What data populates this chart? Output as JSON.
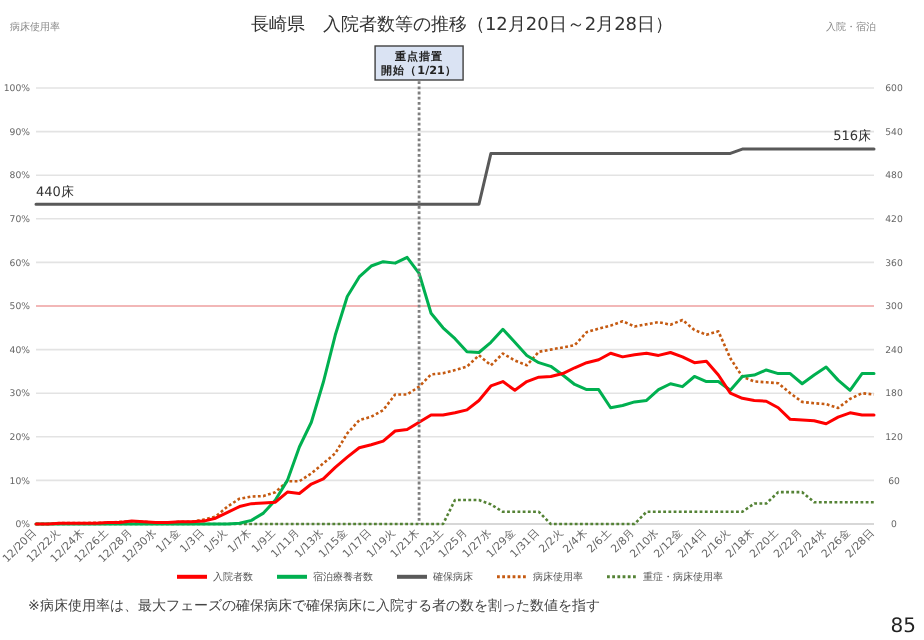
{
  "chart_data": {
    "type": "line",
    "title": "長崎県　入院者数等の推移（12月20日～2月28日）",
    "categories": [
      "12/20日",
      null,
      "12/22火",
      null,
      "12/24木",
      null,
      "12/26土",
      null,
      "12/28月",
      null,
      "12/30水",
      null,
      "1/1金",
      null,
      "1/3日",
      null,
      "1/5火",
      null,
      "1/7木",
      null,
      "1/9土",
      null,
      "1/11月",
      null,
      "1/13水",
      null,
      "1/15金",
      null,
      "1/17日",
      null,
      "1/19火",
      null,
      "1/21木",
      null,
      "1/23土",
      null,
      "1/25月",
      null,
      "1/27水",
      null,
      "1/29金",
      null,
      "1/31日",
      null,
      "2/2火",
      null,
      "2/4木",
      null,
      "2/6土",
      null,
      "2/8月",
      null,
      "2/10水",
      null,
      "2/12金",
      null,
      "2/14日",
      null,
      "2/16火",
      null,
      "2/18木",
      null,
      "2/20土",
      null,
      "2/22月",
      null,
      "2/24水",
      null,
      "2/26金",
      null,
      "2/28日"
    ],
    "series": [
      {
        "name": "入院者数",
        "color": "#ff0000",
        "axis": "y2",
        "line_style": "solid",
        "values": [
          0,
          0,
          1,
          1,
          1,
          1,
          2,
          2,
          4,
          3,
          2,
          2,
          3,
          3,
          4,
          8,
          16,
          24,
          28,
          29,
          30,
          44,
          42,
          55,
          62,
          78,
          92,
          105,
          109,
          114,
          128,
          130,
          140,
          150,
          150,
          153,
          157,
          170,
          190,
          196,
          184,
          196,
          202,
          203,
          207,
          215,
          222,
          226,
          235,
          230,
          233,
          235,
          232,
          236,
          230,
          222,
          224,
          205,
          180,
          173,
          170,
          169,
          160,
          144,
          143,
          142,
          138,
          147,
          153,
          150,
          150
        ]
      },
      {
        "name": "宿泊療養者数",
        "color": "#00b050",
        "axis": "y2",
        "line_style": "solid",
        "values": [
          0,
          0,
          0,
          0,
          0,
          0,
          0,
          0,
          0,
          0,
          0,
          0,
          0,
          0,
          0,
          0,
          0,
          1,
          5,
          15,
          33,
          60,
          106,
          140,
          195,
          260,
          313,
          340,
          355,
          361,
          359,
          367,
          345,
          290,
          270,
          255,
          237,
          236,
          250,
          268,
          250,
          232,
          222,
          217,
          205,
          192,
          185,
          185,
          160,
          163,
          168,
          170,
          185,
          193,
          189,
          203,
          196,
          196,
          184,
          203,
          205,
          212,
          207,
          207,
          193,
          205,
          216,
          198,
          184,
          207,
          207
        ]
      },
      {
        "name": "確保病床",
        "color": "#595959",
        "axis": "y2",
        "line_style": "solid",
        "values": [
          440,
          440,
          440,
          440,
          440,
          440,
          440,
          440,
          440,
          440,
          440,
          440,
          440,
          440,
          440,
          440,
          440,
          440,
          440,
          440,
          440,
          440,
          440,
          440,
          440,
          440,
          440,
          440,
          440,
          440,
          440,
          440,
          440,
          440,
          440,
          440,
          440,
          440,
          510,
          510,
          510,
          510,
          510,
          510,
          510,
          510,
          510,
          510,
          510,
          510,
          510,
          510,
          510,
          510,
          510,
          510,
          510,
          510,
          510,
          516,
          516,
          516,
          516,
          516,
          516,
          516,
          516,
          516,
          516,
          516,
          516
        ]
      },
      {
        "name": "病床使用率",
        "color": "#c55a11",
        "axis": "y",
        "line_style": "dotted",
        "values": [
          0,
          0,
          0.2,
          0.2,
          0.2,
          0.3,
          0.3,
          0.5,
          0.6,
          0.5,
          0.3,
          0.3,
          0.5,
          0.5,
          1,
          1.7,
          4,
          5.8,
          6.3,
          6.4,
          7.3,
          9.8,
          9.8,
          11.6,
          13.9,
          16.2,
          20.8,
          23.8,
          24.6,
          26.1,
          29.7,
          29.7,
          31.5,
          34.3,
          34.6,
          35.3,
          36.1,
          38.7,
          36.4,
          39.1,
          37.5,
          36.4,
          39.5,
          40,
          40.5,
          41,
          44,
          44.8,
          45.5,
          46.5,
          45.3,
          45.8,
          46.3,
          45.7,
          46.8,
          44.5,
          43.4,
          44.2,
          38,
          33.8,
          32.7,
          32.5,
          32.3,
          30,
          28,
          27.7,
          27.5,
          26.6,
          28.7,
          30,
          29.7
        ]
      },
      {
        "name": "重症・病床使用率",
        "color": "#548235",
        "axis": "y",
        "line_style": "dotted",
        "values": [
          0,
          0,
          0,
          0,
          0,
          0,
          0,
          0,
          0,
          0,
          0,
          0,
          0,
          0,
          0,
          0,
          0,
          0,
          0,
          0,
          0,
          0,
          0,
          0,
          0,
          0,
          0,
          0,
          0,
          0,
          0,
          0,
          0,
          0,
          0,
          5.5,
          5.5,
          5.5,
          4.5,
          2.8,
          2.8,
          2.8,
          2.8,
          0,
          0,
          0,
          0,
          0,
          0,
          0,
          0,
          2.8,
          2.8,
          2.8,
          2.8,
          2.8,
          2.8,
          2.8,
          2.8,
          2.8,
          4.7,
          4.7,
          7.3,
          7.3,
          7.3,
          5,
          5,
          5,
          5,
          5,
          5
        ]
      }
    ],
    "ylim": [
      0,
      100
    ],
    "yticks": [
      {
        "value": 0,
        "label": "0%"
      },
      {
        "value": 10,
        "label": "10%"
      },
      {
        "value": 20,
        "label": "20%"
      },
      {
        "value": 30,
        "label": "30%"
      },
      {
        "value": 40,
        "label": "40%"
      },
      {
        "value": 50,
        "label": "50%"
      },
      {
        "value": 60,
        "label": "60%"
      },
      {
        "value": 70,
        "label": "70%"
      },
      {
        "value": 80,
        "label": "80%"
      },
      {
        "value": 90,
        "label": "90%"
      },
      {
        "value": 100,
        "label": "100%"
      }
    ],
    "y2lim": [
      0,
      600
    ],
    "y2ticks": [
      0,
      60,
      120,
      180,
      240,
      300,
      360,
      420,
      480,
      540,
      600
    ],
    "ref_lines": [
      {
        "axis": "y",
        "value": 50,
        "color": "#f4a6a6",
        "line_style": "solid"
      },
      {
        "axis": "x",
        "value": "1/21木",
        "label": "重点措置開始（1/21）",
        "color": "#7f7f7f",
        "line_style": "dotted"
      }
    ],
    "annotations": [
      "病床使用率",
      "入院・宿泊",
      "440床",
      "516床",
      "※病床使用率は、最大フェーズの確保病床で確保病床に入院する者の数を割った数値を指す",
      "85"
    ],
    "grid": "y",
    "legend": "bottom",
    "marker": "none"
  }
}
